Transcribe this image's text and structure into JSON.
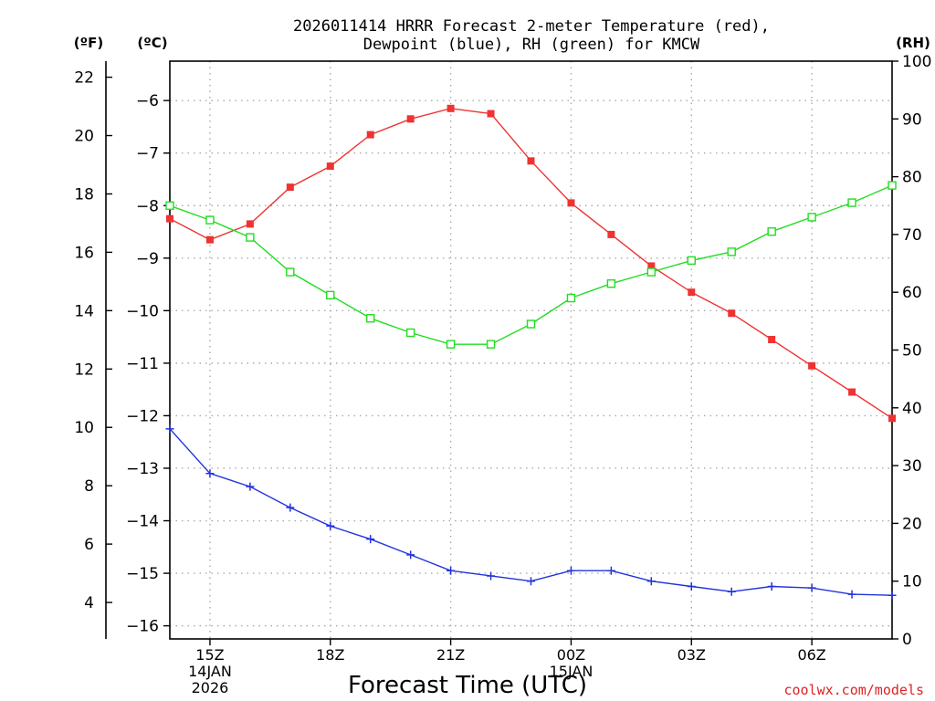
{
  "chart_data": {
    "type": "line",
    "title_line1": "2026011414 HRRR Forecast 2-meter Temperature (red),",
    "title_line2": "Dewpoint (blue), RH (green) for KMCW",
    "xlabel": "Forecast Time (UTC)",
    "unit_f": "(ºF)",
    "unit_c": "(ºC)",
    "unit_rh": "(RH)",
    "credit": "coolwx.com/models",
    "x_hours": [
      14,
      15,
      16,
      17,
      18,
      19,
      20,
      21,
      22,
      23,
      24,
      25,
      26,
      27,
      28,
      29,
      30,
      31,
      32
    ],
    "xlim": [
      14,
      32
    ],
    "x_ticks": [
      {
        "hour": 15,
        "label": "15Z",
        "sub1": "14JAN",
        "sub2": "2026"
      },
      {
        "hour": 18,
        "label": "18Z"
      },
      {
        "hour": 21,
        "label": "21Z"
      },
      {
        "hour": 24,
        "label": "00Z",
        "sub1": "15JAN"
      },
      {
        "hour": 27,
        "label": "03Z"
      },
      {
        "hour": 30,
        "label": "06Z"
      }
    ],
    "ylim_c": [
      -16.25,
      -5.25
    ],
    "y_ticks_c": [
      -16,
      -15,
      -14,
      -13,
      -12,
      -11,
      -10,
      -9,
      -8,
      -7,
      -6
    ],
    "y_tick_labels_c": [
      "−16",
      "−15",
      "−14",
      "−13",
      "−12",
      "−11",
      "−10",
      "−9",
      "−8",
      "−7",
      "−6"
    ],
    "y_ticks_f": [
      4,
      6,
      8,
      10,
      12,
      14,
      16,
      18,
      20,
      22
    ],
    "ylim_rh": [
      0,
      100
    ],
    "y_ticks_rh": [
      0,
      10,
      20,
      30,
      40,
      50,
      60,
      70,
      80,
      90,
      100
    ],
    "series": [
      {
        "name": "Temperature",
        "unit": "C",
        "color": "#ee3333",
        "values": [
          -8.25,
          -8.65,
          -8.35,
          -7.65,
          -7.25,
          -6.65,
          -6.35,
          -6.15,
          -6.25,
          -7.15,
          -7.95,
          -8.55,
          -9.15,
          -9.65,
          -10.05,
          -10.55,
          -11.05,
          -11.55,
          -12.05
        ]
      },
      {
        "name": "Dewpoint",
        "unit": "C",
        "color": "#2233dd",
        "values": [
          -12.25,
          -13.1,
          -13.35,
          -13.75,
          -14.1,
          -14.35,
          -14.65,
          -14.95,
          -15.05,
          -15.15,
          -14.95,
          -14.95,
          -15.15,
          -15.25,
          -15.35,
          -15.25,
          -15.28,
          -15.4,
          -15.42
        ]
      },
      {
        "name": "RH",
        "unit": "%",
        "color": "#22dd22",
        "values": [
          75,
          72.5,
          69.5,
          63.5,
          59.5,
          55.5,
          53,
          51,
          51,
          54.5,
          59,
          61.5,
          63.5,
          65.5,
          67,
          70.5,
          73,
          75.5,
          78.5
        ]
      }
    ]
  }
}
